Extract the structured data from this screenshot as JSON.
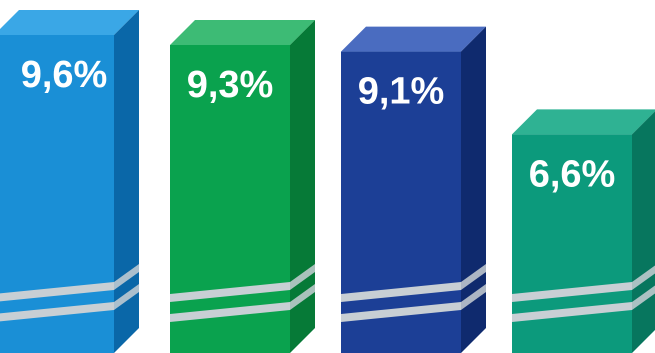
{
  "chart_data": {
    "type": "bar",
    "style": "3d-box",
    "categories": [
      "",
      "",
      "",
      ""
    ],
    "values": [
      9.6,
      9.3,
      9.1,
      6.6
    ],
    "data_labels": [
      "9,6%",
      "9,3%",
      "9,1%",
      "6,6%"
    ],
    "unit": "%",
    "title": "",
    "xlabel": "",
    "ylabel": "",
    "grid": false,
    "legend": "none",
    "bar_colors": [
      {
        "front": "#1a8fd6",
        "top": "#3aa7e6",
        "side": "#0a67a8"
      },
      {
        "front": "#0aa24e",
        "top": "#3dbb75",
        "side": "#067a37"
      },
      {
        "front": "#1c3f96",
        "top": "#4a6cc0",
        "side": "#0f2a6e"
      },
      {
        "front": "#0c9a7c",
        "top": "#2fb293",
        "side": "#07765e"
      }
    ],
    "stripe_color": "#c8cfd4"
  }
}
